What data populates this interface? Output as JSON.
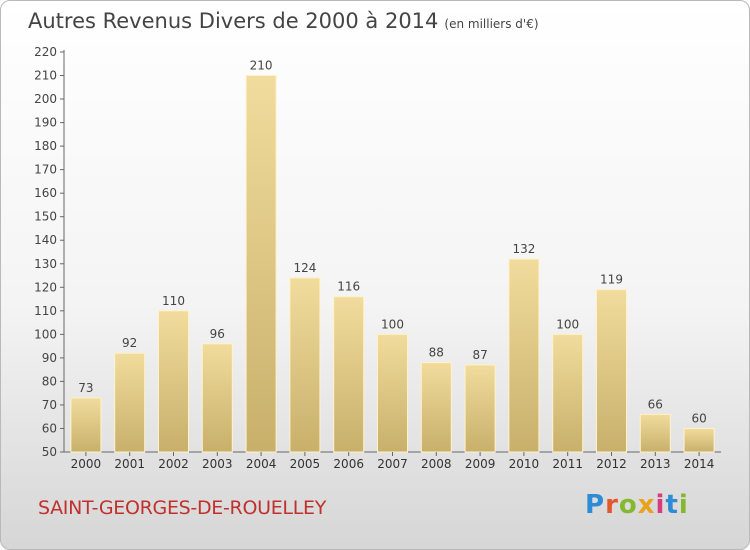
{
  "chart_data": {
    "type": "bar",
    "title": "Autres Revenus Divers de 2000 à 2014",
    "subtitle": "(en milliers d'€)",
    "categories": [
      "2000",
      "2001",
      "2002",
      "2003",
      "2004",
      "2005",
      "2006",
      "2007",
      "2008",
      "2009",
      "2010",
      "2011",
      "2012",
      "2013",
      "2014"
    ],
    "values": [
      73,
      92,
      110,
      96,
      210,
      124,
      116,
      100,
      88,
      87,
      132,
      100,
      119,
      66,
      60
    ],
    "ylim": [
      50,
      220
    ],
    "yticks": [
      50,
      60,
      70,
      80,
      90,
      100,
      110,
      120,
      130,
      140,
      150,
      160,
      170,
      180,
      190,
      200,
      210,
      220
    ],
    "grid": false,
    "bar_color": "#e0c77f"
  },
  "footer": {
    "place_name": "SAINT-GEORGES-DE-ROUELLEY",
    "logo_text": "Proxiti"
  },
  "colors": {
    "place_name": "#c0312d",
    "logo": [
      "#2e8bd6",
      "#e2572c",
      "#84b92f",
      "#e9a21c",
      "#d63c7e",
      "#2e8bd6",
      "#84b92f"
    ]
  }
}
